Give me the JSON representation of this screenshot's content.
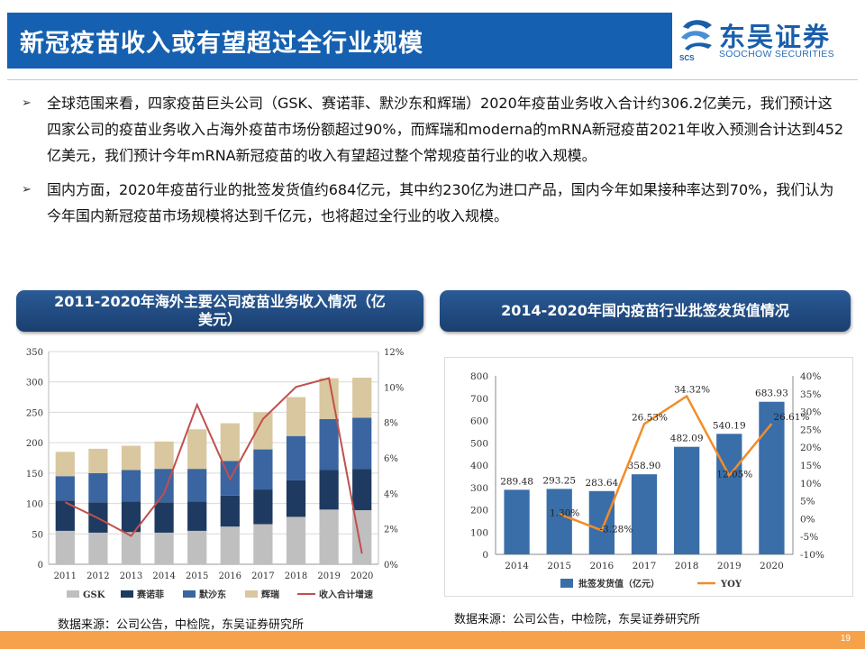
{
  "slide": {
    "title": "新冠疫苗收入或有望超过全行业规模",
    "page_number": "19"
  },
  "logo": {
    "name_cn": "东吴证券",
    "name_en": "SOOCHOW SECURITIES",
    "abbr": "SCS"
  },
  "bullets": [
    "全球范围来看，四家疫苗巨头公司（GSK、赛诺菲、默沙东和辉瑞）2020年疫苗业务收入合计约306.2亿美元，我们预计这四家公司的疫苗业务收入占海外疫苗市场份额超过90%，而辉瑞和moderna的mRNA新冠疫苗2021年收入预测合计达到452亿美元，我们预计今年mRNA新冠疫苗的收入有望超过整个常规疫苗行业的收入规模。",
    "国内方面，2020年疫苗行业的批签发货值约684亿元，其中约230亿为进口产品，国内今年如果接种率达到70%，我们认为今年国内新冠疫苗市场规模将达到千亿元，也将超过全行业的收入规模。"
  ],
  "bullet_marker": "➢",
  "chart_data": [
    {
      "type": "bar",
      "stacked": true,
      "title": "2011-2020年海外主要公司疫苗业务收入情况（亿美元）",
      "title_lines": [
        "2011-2020年海外主要公司疫苗业务收入情况（亿",
        "美元）"
      ],
      "categories": [
        "2011",
        "2012",
        "2013",
        "2014",
        "2015",
        "2016",
        "2017",
        "2018",
        "2019",
        "2020"
      ],
      "series": [
        {
          "name": "GSK",
          "color": "#bfbfbf",
          "values": [
            55,
            52,
            53,
            52,
            55,
            62,
            66,
            78,
            90,
            89
          ]
        },
        {
          "name": "赛诺菲",
          "color": "#1f3a60",
          "values": [
            50,
            50,
            50,
            50,
            48,
            51,
            57,
            60,
            65,
            68
          ]
        },
        {
          "name": "默沙东",
          "color": "#3a65a0",
          "values": [
            40,
            48,
            52,
            55,
            54,
            57,
            66,
            73,
            84,
            84
          ]
        },
        {
          "name": "辉瑞",
          "color": "#d9c7a0",
          "values": [
            40,
            40,
            40,
            45,
            65,
            62,
            61,
            64,
            67,
            66
          ]
        },
        {
          "name": "收入合计增速",
          "type": "line",
          "axis": "right",
          "color": "#c0504d",
          "values": [
            3.5,
            null,
            1.6,
            4.0,
            9.0,
            4.8,
            8.2,
            10.0,
            10.5,
            0.6
          ]
        }
      ],
      "ylim": [
        0,
        350
      ],
      "yticks": [
        0,
        50,
        100,
        150,
        200,
        250,
        300,
        350
      ],
      "y2lim": [
        0,
        12
      ],
      "y2ticks": [
        "0%",
        "2%",
        "4%",
        "6%",
        "8%",
        "10%",
        "12%"
      ],
      "grid": true,
      "legend": "bottom",
      "source": "数据来源：公司公告，中检院，东吴证券研究所"
    },
    {
      "type": "bar",
      "title": "2014-2020年国内疫苗行业批签发货值情况",
      "categories": [
        "2014",
        "2015",
        "2016",
        "2017",
        "2018",
        "2019",
        "2020"
      ],
      "series": [
        {
          "name": "批签发货值（亿元）",
          "color": "#3a6ea8",
          "values": [
            289.48,
            293.25,
            283.64,
            358.9,
            482.09,
            540.19,
            683.93
          ],
          "labels": [
            "289.48",
            "293.25",
            "283.64",
            "358.90",
            "482.09",
            "540.19",
            "683.93"
          ]
        },
        {
          "name": "YOY",
          "type": "line",
          "axis": "right",
          "color": "#f28c28",
          "values": [
            null,
            1.3,
            -3.28,
            26.53,
            34.32,
            12.05,
            26.61
          ],
          "labels": [
            "",
            "1.30%",
            "-3.28%",
            "26.53%",
            "34.32%",
            "12.05%",
            "26.61%"
          ]
        }
      ],
      "ylim": [
        0,
        800
      ],
      "yticks": [
        0,
        100,
        200,
        300,
        400,
        500,
        600,
        700,
        800
      ],
      "y2lim": [
        -10,
        40
      ],
      "y2ticks": [
        "-10%",
        "-5%",
        "0%",
        "5%",
        "10%",
        "15%",
        "20%",
        "25%",
        "30%",
        "35%",
        "40%"
      ],
      "grid": false,
      "legend": "bottom",
      "source": "数据来源：公司公告，中检院，东吴证券研究所"
    }
  ]
}
